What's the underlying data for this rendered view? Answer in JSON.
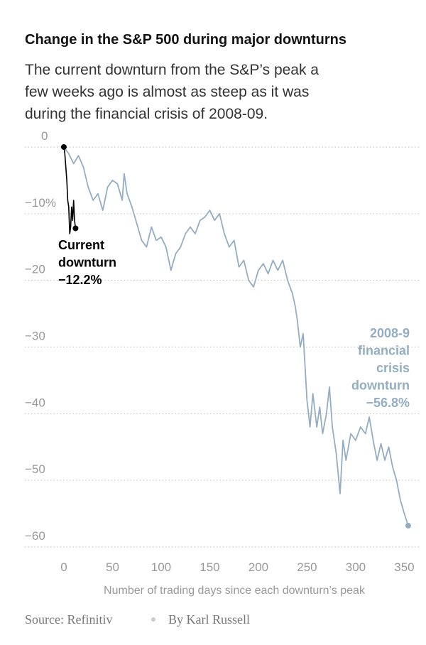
{
  "chart_data": {
    "type": "line",
    "title": "Change in the S&P 500 during major downturns",
    "subtitle": [
      "The current downturn from the S&P’s peak a",
      "few weeks ago is almost as steep as it was",
      "during the financial crisis of 2008-09."
    ],
    "xlabel": "Number of trading days since each downturn’s peak",
    "source": "Source: Refinitiv",
    "byline": "By Karl Russell",
    "xlim": [
      -35,
      365
    ],
    "ylim": [
      -62,
      2
    ],
    "xticks": [
      0,
      50,
      100,
      150,
      200,
      250,
      300,
      350
    ],
    "yticks": [
      0,
      {
        "value": -10,
        "label": "−10%"
      },
      {
        "value": -20,
        "label": "−20"
      },
      {
        "value": -30,
        "label": "−30"
      },
      {
        "value": -40,
        "label": "−40"
      },
      {
        "value": -50,
        "label": "−50"
      },
      {
        "value": -60,
        "label": "−60"
      }
    ],
    "grid": true,
    "series": [
      {
        "name": "2008-9 financial crisis downturn",
        "color": "#93adc3",
        "x": [
          0,
          5,
          10,
          15,
          20,
          25,
          30,
          35,
          40,
          45,
          50,
          55,
          60,
          62,
          65,
          70,
          75,
          80,
          85,
          90,
          95,
          100,
          105,
          110,
          115,
          120,
          125,
          130,
          135,
          140,
          145,
          150,
          155,
          160,
          165,
          170,
          175,
          180,
          185,
          190,
          195,
          200,
          205,
          210,
          215,
          220,
          225,
          230,
          235,
          238,
          240,
          243,
          246,
          250,
          253,
          256,
          260,
          263,
          266,
          270,
          273,
          276,
          280,
          284,
          287,
          290,
          295,
          300,
          305,
          310,
          314,
          318,
          322,
          326,
          330,
          334,
          338,
          342,
          346,
          350,
          354
        ],
        "values": [
          0,
          -1,
          -2.5,
          -1.3,
          -3,
          -6,
          -8,
          -7,
          -9.5,
          -6,
          -5,
          -5.5,
          -8,
          -4,
          -7,
          -9,
          -11.5,
          -14,
          -15,
          -12,
          -14,
          -13.5,
          -15,
          -18.5,
          -16,
          -15,
          -13,
          -12,
          -13,
          -11,
          -10.5,
          -9.5,
          -11,
          -10,
          -13,
          -15,
          -14,
          -18,
          -17,
          -20,
          -21,
          -18.5,
          -17.5,
          -19,
          -17,
          -18.5,
          -17,
          -20,
          -22,
          -24,
          -26,
          -30,
          -28,
          -38,
          -42,
          -37,
          -42,
          -39,
          -43,
          -40,
          -36,
          -42,
          -46,
          -52,
          -44,
          -47,
          -43,
          -44,
          -42,
          -43,
          -40.5,
          -44,
          -47,
          -44.5,
          -47,
          -45,
          -48,
          -50,
          -53,
          -55,
          -56.8
        ],
        "label": [
          "2008-9",
          "financial",
          "crisis",
          "downturn",
          "−56.8%"
        ]
      },
      {
        "name": "Current downturn",
        "color": "#000000",
        "x": [
          0,
          1,
          2,
          3,
          4,
          5,
          6,
          7,
          8,
          9,
          10,
          11,
          12
        ],
        "values": [
          0,
          -1,
          -3,
          -5,
          -8,
          -9,
          -13,
          -12,
          -9,
          -11,
          -8,
          -11,
          -12.2
        ],
        "label": [
          "Current",
          "downturn",
          "−12.2%"
        ]
      }
    ]
  }
}
